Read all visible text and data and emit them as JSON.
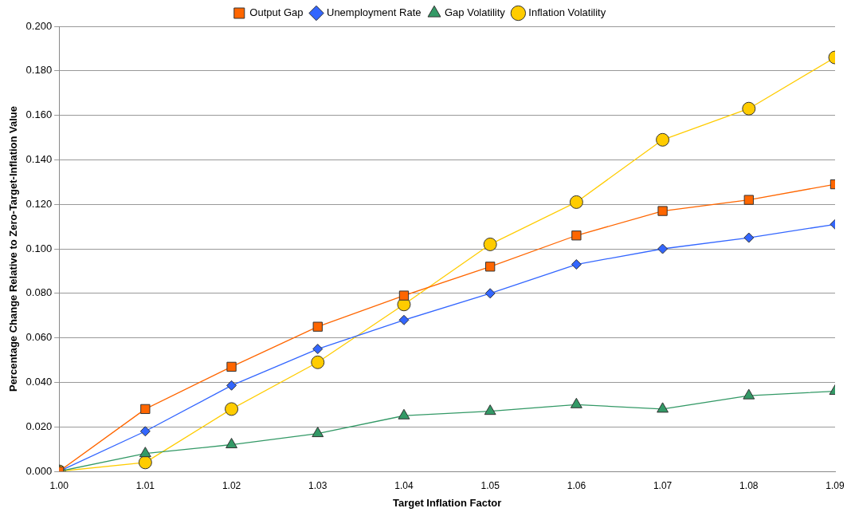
{
  "chart_data": {
    "type": "line",
    "xlabel": "Target Inflation Factor",
    "ylabel": "Percentage Change Relative to Zero-Target-Inflation Value",
    "x": [
      1.0,
      1.01,
      1.02,
      1.03,
      1.04,
      1.05,
      1.06,
      1.07,
      1.08,
      1.09
    ],
    "xlim": [
      1.0,
      1.09
    ],
    "xticks": [
      {
        "value": 1.0,
        "label": "1.00"
      },
      {
        "value": 1.01,
        "label": "1.01"
      },
      {
        "value": 1.02,
        "label": "1.02"
      },
      {
        "value": 1.03,
        "label": "1.03"
      },
      {
        "value": 1.04,
        "label": "1.04"
      },
      {
        "value": 1.05,
        "label": "1.05"
      },
      {
        "value": 1.06,
        "label": "1.06"
      },
      {
        "value": 1.07,
        "label": "1.07"
      },
      {
        "value": 1.08,
        "label": "1.08"
      },
      {
        "value": 1.09,
        "label": "1.09"
      }
    ],
    "ylim": [
      0,
      0.2
    ],
    "yticks": [
      {
        "value": 0,
        "label": "0.000"
      },
      {
        "value": 0.02,
        "label": "0.020"
      },
      {
        "value": 0.04,
        "label": "0.040"
      },
      {
        "value": 0.06,
        "label": "0.060"
      },
      {
        "value": 0.08,
        "label": "0.080"
      },
      {
        "value": 0.1,
        "label": "0.100"
      },
      {
        "value": 0.12,
        "label": "0.120"
      },
      {
        "value": 0.14,
        "label": "0.140"
      },
      {
        "value": 0.16,
        "label": "0.160"
      },
      {
        "value": 0.18,
        "label": "0.180"
      },
      {
        "value": 0.2,
        "label": "0.200"
      }
    ],
    "grid": "y",
    "legend": "top",
    "series": [
      {
        "name": "Output Gap",
        "color": "#ff6600",
        "marker": "square",
        "values": [
          0,
          0.028,
          0.047,
          0.065,
          0.079,
          0.092,
          0.106,
          0.117,
          0.122,
          0.129
        ]
      },
      {
        "name": "Unemployment Rate",
        "color": "#3366ff",
        "marker": "diamond",
        "values": [
          0,
          0.018,
          0.0386,
          0.055,
          0.068,
          0.08,
          0.093,
          0.1,
          0.105,
          0.111
        ]
      },
      {
        "name": "Gap Volatility",
        "color": "#339966",
        "marker": "triangle",
        "values": [
          0,
          0.008,
          0.012,
          0.017,
          0.025,
          0.027,
          0.03,
          0.028,
          0.034,
          0.036
        ]
      },
      {
        "name": "Inflation Volatility",
        "color": "#ffcc00",
        "marker": "circle",
        "values": [
          0,
          0.004,
          0.028,
          0.049,
          0.075,
          0.102,
          0.121,
          0.149,
          0.163,
          0.186
        ]
      }
    ]
  }
}
